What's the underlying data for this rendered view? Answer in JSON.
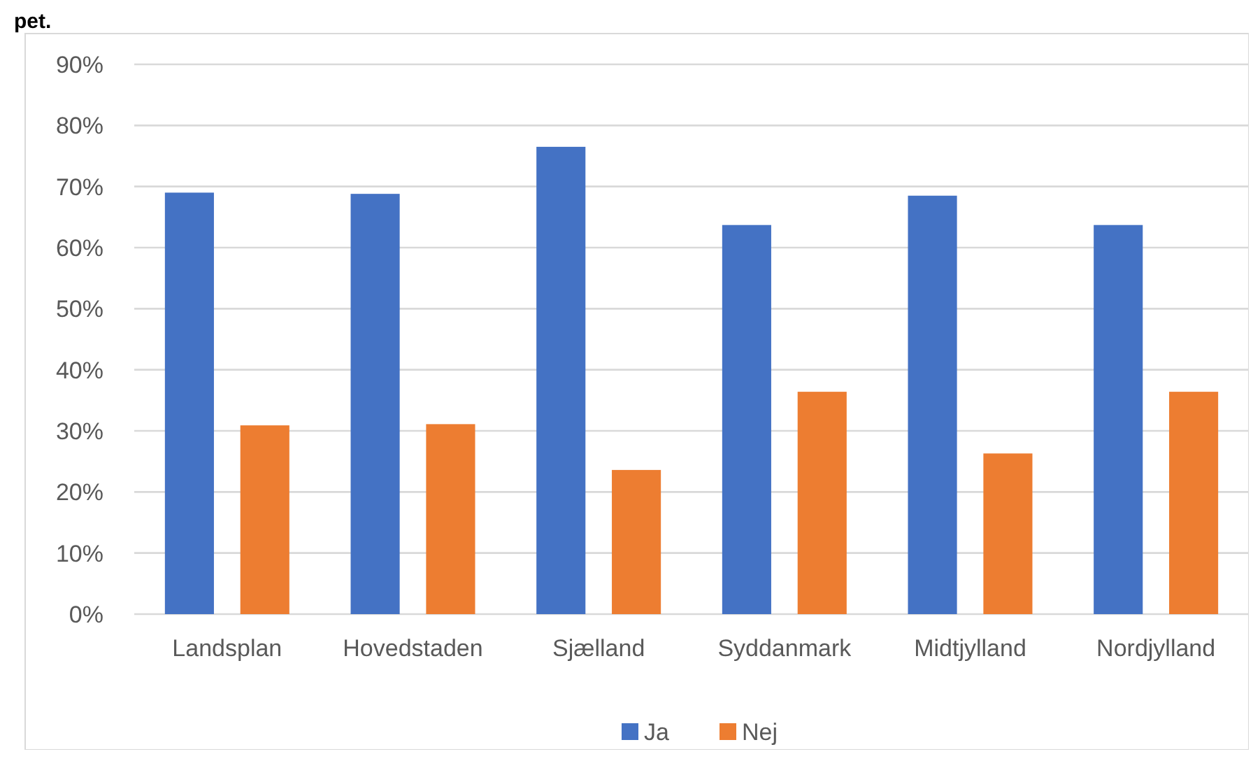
{
  "chart_data": {
    "type": "bar",
    "title": "pet.",
    "categories": [
      "Landsplan",
      "Hovedstaden",
      "Sjælland",
      "Syddanmark",
      "Midtjylland",
      "Nordjylland"
    ],
    "series": [
      {
        "name": "Ja",
        "color": "#4472c4",
        "values": [
          69.0,
          68.8,
          76.5,
          63.7,
          68.5,
          63.7
        ]
      },
      {
        "name": "Nej",
        "color": "#ed7d31",
        "values": [
          30.9,
          31.1,
          23.6,
          36.4,
          26.3,
          36.4
        ]
      }
    ],
    "ylim": [
      0,
      90
    ],
    "yticks": [
      {
        "value": 0,
        "label": "0%"
      },
      {
        "value": 10,
        "label": "10%"
      },
      {
        "value": 20,
        "label": "20%"
      },
      {
        "value": 30,
        "label": "30%"
      },
      {
        "value": 40,
        "label": "40%"
      },
      {
        "value": 50,
        "label": "50%"
      },
      {
        "value": 60,
        "label": "60%"
      },
      {
        "value": 70,
        "label": "70%"
      },
      {
        "value": 80,
        "label": "80%"
      },
      {
        "value": 90,
        "label": "90%"
      }
    ],
    "grid": "y",
    "legend": "bottom"
  }
}
